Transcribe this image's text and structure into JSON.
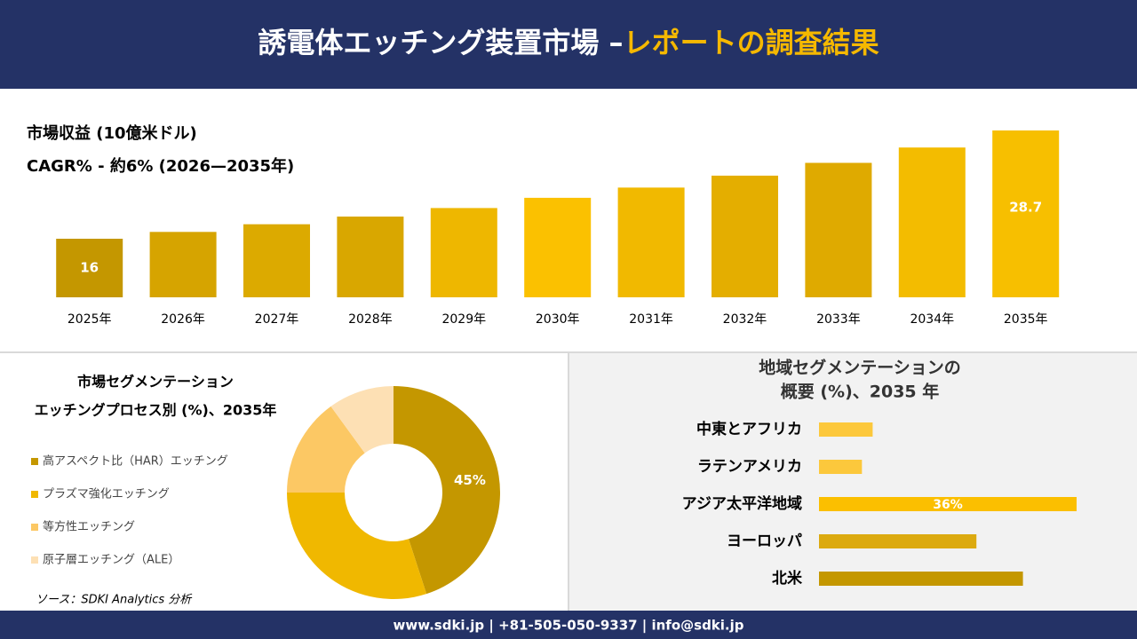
{
  "header": {
    "title_main": "誘電体エッチング装置市場 –",
    "title_accent": "レポートの調査結果"
  },
  "footer": {
    "contact": "www.sdki.jp | +81-505-050-9337 | info@sdki.jp",
    "source": "ソース：SDKI Analytics 分析"
  },
  "chart_data": [
    {
      "type": "bar",
      "title": "市場収益 (10億米ドル)",
      "subtitle": "CAGR% - 約6% (2026—2035年)",
      "categories": [
        "2025年",
        "2026年",
        "2027年",
        "2028年",
        "2029年",
        "2030年",
        "2031年",
        "2032年",
        "2033年",
        "2034年",
        "2035年"
      ],
      "values": [
        16,
        16.8,
        17.7,
        18.6,
        19.6,
        20.8,
        22.0,
        23.4,
        24.9,
        26.7,
        28.7
      ],
      "value_labels": [
        "16",
        null,
        null,
        null,
        null,
        null,
        null,
        null,
        null,
        null,
        "28.7"
      ],
      "colors": [
        "#c49700",
        "#d6a400",
        "#dcaa00",
        "#d9a700",
        "#eeb700",
        "#fbc100",
        "#f1b900",
        "#e4ae00",
        "#dfaa00",
        "#f3bc00",
        "#f7bf00"
      ]
    },
    {
      "type": "donut",
      "title": [
        "市場セグメンテーション",
        "エッチングプロセス別 (%)、2035年"
      ],
      "categories": [
        "高アスペクト比（HAR）エッチング",
        "プラズマ強化エッチング",
        "等方性エッチング",
        "原子層エッチング（ALE）"
      ],
      "values": [
        45,
        30,
        15,
        10
      ],
      "value_labels": [
        "45%",
        null,
        null,
        null
      ],
      "colors": [
        "#c49700",
        "#f0b800",
        "#fcc864",
        "#fde0b4"
      ]
    },
    {
      "type": "barh",
      "title": [
        "地域セグメンテーションの",
        "概要 (%)、2035 年"
      ],
      "categories": [
        "中東とアフリカ",
        "ラテンアメリカ",
        "アジア太平洋地域",
        "ヨーロッパ",
        "北米"
      ],
      "values": [
        7.5,
        6,
        36,
        22,
        28.5
      ],
      "value_labels": [
        null,
        null,
        "36%",
        null,
        null
      ],
      "colors": [
        "#fcc83c",
        "#fcc83c",
        "#fbbf00",
        "#dcaa10",
        "#c49700"
      ]
    }
  ]
}
